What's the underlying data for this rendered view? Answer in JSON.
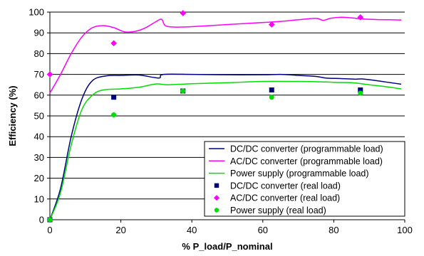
{
  "chart_data": {
    "type": "line",
    "title": "",
    "xlabel": "% P_load/P_nominal",
    "ylabel": "Efficiency (%)",
    "xlim": [
      0,
      100
    ],
    "ylim": [
      0,
      100
    ],
    "xticks": [
      0,
      20,
      40,
      60,
      80,
      100
    ],
    "yticks": [
      0,
      10,
      20,
      30,
      40,
      50,
      60,
      70,
      80,
      90,
      100
    ],
    "grid": "horizontal",
    "legend_position": "bottom-right",
    "series": [
      {
        "name": "DC/DC converter (programmable load)",
        "kind": "line",
        "color": "#000080",
        "points": [
          [
            0,
            0
          ],
          [
            3,
            15
          ],
          [
            6,
            40
          ],
          [
            9,
            58
          ],
          [
            12,
            67
          ],
          [
            16,
            69.3
          ],
          [
            20,
            69.5
          ],
          [
            25,
            69.7
          ],
          [
            29,
            68.6
          ],
          [
            31,
            68.3
          ],
          [
            32,
            70
          ],
          [
            40,
            70
          ],
          [
            50,
            69.8
          ],
          [
            60,
            69.8
          ],
          [
            65,
            70
          ],
          [
            70,
            69.5
          ],
          [
            75,
            69
          ],
          [
            78,
            68.2
          ],
          [
            82,
            68
          ],
          [
            86,
            67.7
          ],
          [
            88,
            67.8
          ],
          [
            92,
            67
          ],
          [
            96,
            66
          ],
          [
            99,
            65.3
          ]
        ]
      },
      {
        "name": "AC/DC converter (programmable load)",
        "kind": "line",
        "color": "#ff00ff",
        "points": [
          [
            0,
            61
          ],
          [
            3,
            70
          ],
          [
            6,
            80
          ],
          [
            9,
            88
          ],
          [
            12,
            92.5
          ],
          [
            15,
            93.5
          ],
          [
            18,
            92.5
          ],
          [
            21,
            90.5
          ],
          [
            24,
            90.7
          ],
          [
            27,
            92.5
          ],
          [
            30,
            95.5
          ],
          [
            31.5,
            96.5
          ],
          [
            32.5,
            93.5
          ],
          [
            35,
            92.8
          ],
          [
            40,
            93
          ],
          [
            50,
            94
          ],
          [
            60,
            95
          ],
          [
            65,
            95.5
          ],
          [
            70,
            96.3
          ],
          [
            75,
            97
          ],
          [
            77,
            96
          ],
          [
            79,
            97
          ],
          [
            82,
            97.5
          ],
          [
            85,
            97.2
          ],
          [
            88,
            96.7
          ],
          [
            92,
            96.4
          ],
          [
            96,
            96.3
          ],
          [
            99,
            96.2
          ]
        ]
      },
      {
        "name": "Power supply (programmable load)",
        "kind": "line",
        "color": "#00dd00",
        "points": [
          [
            0,
            0
          ],
          [
            3,
            13
          ],
          [
            6,
            36
          ],
          [
            9,
            53
          ],
          [
            12,
            60
          ],
          [
            15,
            62.5
          ],
          [
            20,
            63
          ],
          [
            25,
            63.8
          ],
          [
            30,
            65.4
          ],
          [
            33,
            65
          ],
          [
            40,
            65.5
          ],
          [
            50,
            66
          ],
          [
            60,
            66.6
          ],
          [
            70,
            66.6
          ],
          [
            75,
            66.5
          ],
          [
            80,
            66.2
          ],
          [
            85,
            66
          ],
          [
            90,
            65
          ],
          [
            95,
            64
          ],
          [
            99,
            63
          ]
        ]
      },
      {
        "name": "DC/DC  converter (real load)",
        "kind": "scatter",
        "marker": "square",
        "color": "#000080",
        "points": [
          [
            0,
            0
          ],
          [
            18,
            59
          ],
          [
            37.5,
            62
          ],
          [
            62.5,
            62.5
          ],
          [
            87.5,
            62.5
          ]
        ]
      },
      {
        "name": "AC/DC  converter (real load)",
        "kind": "scatter",
        "marker": "diamond",
        "color": "#ff00ff",
        "points": [
          [
            0,
            70
          ],
          [
            18,
            85
          ],
          [
            37.5,
            99.5
          ],
          [
            62.5,
            94
          ],
          [
            87.5,
            97.5
          ]
        ]
      },
      {
        "name": "Power supply (real load)",
        "kind": "scatter",
        "marker": "circle",
        "color": "#00dd00",
        "points": [
          [
            0,
            0
          ],
          [
            18,
            50.5
          ],
          [
            37.5,
            62
          ],
          [
            62.5,
            59
          ],
          [
            87.5,
            61
          ]
        ]
      }
    ]
  }
}
